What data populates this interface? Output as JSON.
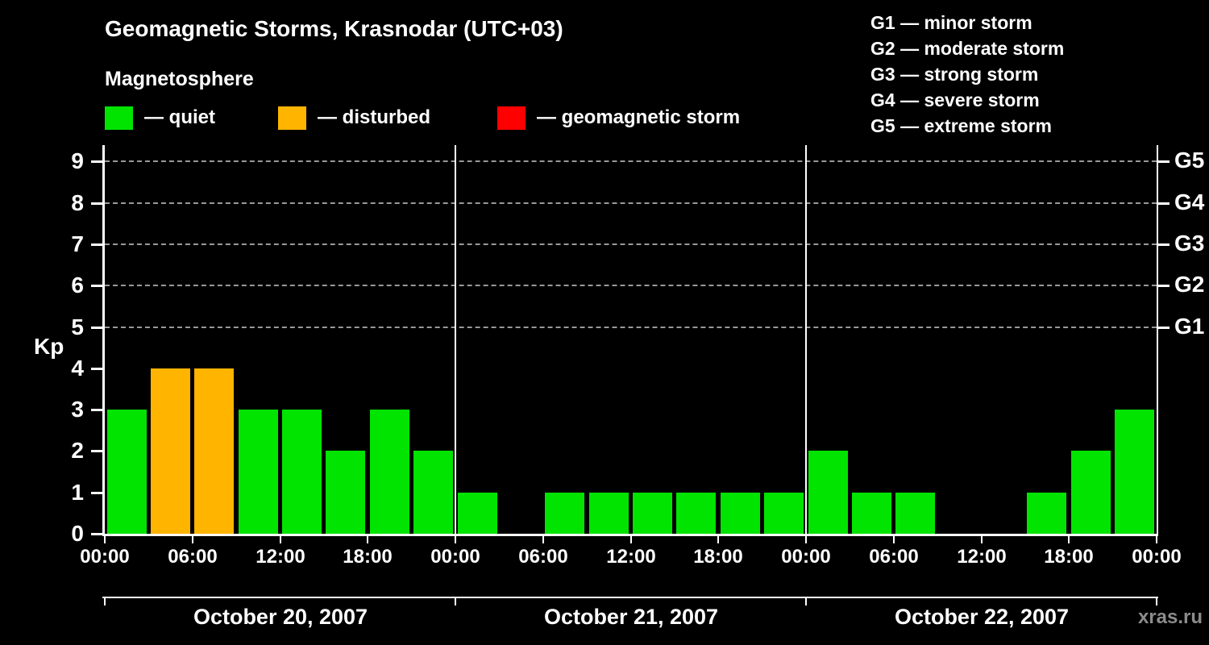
{
  "title": "Geomagnetic Storms, Krasnodar (UTC+03)",
  "subtitle": "Magnetosphere",
  "kp_label": "Kp",
  "watermark": "xras.ru",
  "legend": [
    {
      "status": "quiet",
      "label": "— quiet"
    },
    {
      "status": "disturbed",
      "label": "— disturbed"
    },
    {
      "status": "storm",
      "label": "— geomagnetic storm"
    }
  ],
  "storm_scale": [
    "G1 — minor storm",
    "G2 — moderate storm",
    "G3 — strong storm",
    "G4 — severe storm",
    "G5 — extreme storm"
  ],
  "colors": {
    "background": "#000000",
    "text": "#ffffff",
    "quiet": "#00e400",
    "disturbed": "#ffb400",
    "storm": "#ff0000",
    "gridline": "#999999",
    "watermark": "#8c8c8c"
  },
  "chart_data": {
    "type": "bar",
    "title": "Geomagnetic Storms, Krasnodar (UTC+03)",
    "ylabel": "Kp",
    "ylim": [
      0,
      9.3
    ],
    "y_ticks": [
      0,
      1,
      2,
      3,
      4,
      5,
      6,
      7,
      8,
      9
    ],
    "gridlines": [
      5,
      6,
      7,
      8,
      9
    ],
    "grid": "dashed horizontal at G-levels only",
    "legend_position": "top",
    "right_axis": [
      {
        "label": "G1",
        "value": 5
      },
      {
        "label": "G2",
        "value": 6
      },
      {
        "label": "G3",
        "value": 7
      },
      {
        "label": "G4",
        "value": 8
      },
      {
        "label": "G5",
        "value": 9
      }
    ],
    "interval_hours": 3,
    "x_tick_hours": [
      0,
      6,
      12,
      18
    ],
    "x_tick_labels": [
      "00:00",
      "06:00",
      "12:00",
      "18:00"
    ],
    "days": [
      {
        "date": "October 20, 2007",
        "kp_values": [
          3,
          4,
          4,
          3,
          3,
          2,
          3,
          2
        ],
        "statuses": [
          "quiet",
          "disturbed",
          "disturbed",
          "quiet",
          "quiet",
          "quiet",
          "quiet",
          "quiet"
        ]
      },
      {
        "date": "October 21, 2007",
        "kp_values": [
          1,
          0,
          1,
          1,
          1,
          1,
          1,
          1
        ],
        "statuses": [
          "quiet",
          "quiet",
          "quiet",
          "quiet",
          "quiet",
          "quiet",
          "quiet",
          "quiet"
        ]
      },
      {
        "date": "October 22, 2007",
        "kp_values": [
          2,
          1,
          1,
          0,
          0,
          1,
          2,
          3
        ],
        "statuses": [
          "quiet",
          "quiet",
          "quiet",
          "quiet",
          "quiet",
          "quiet",
          "quiet",
          "quiet"
        ]
      }
    ]
  }
}
